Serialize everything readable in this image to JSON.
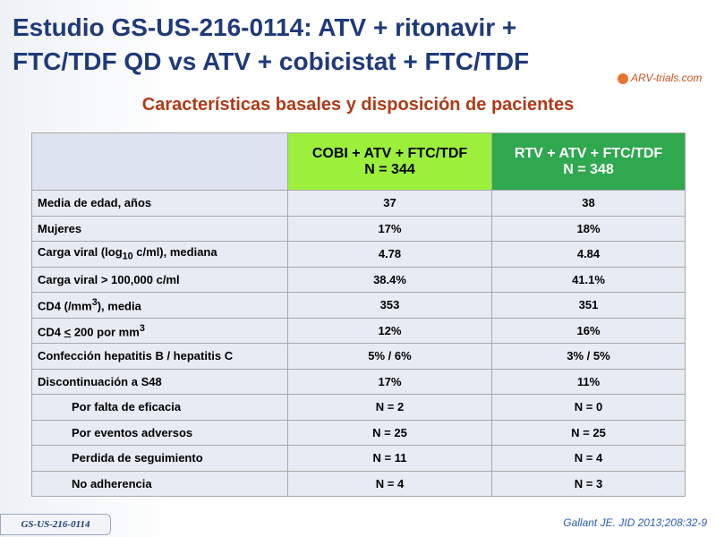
{
  "header": {
    "title_lines": [
      "Estudio GS-US-216-0114: ATV + ritonavir +",
      "FTC/TDF QD vs ATV + cobicistat + FTC/TDF"
    ],
    "logo": "ARV-trials.com",
    "subtitle": "Características basales y disposición de pacientes"
  },
  "table": {
    "columns": [
      [
        "COBI + ATV + FTC/TDF",
        "N = 344"
      ],
      [
        "RTV + ATV + FTC/TDF",
        "N = 348"
      ]
    ],
    "rows": [
      {
        "label": [
          {
            "text": "Media de edad, años"
          }
        ],
        "values": [
          "37",
          "38"
        ]
      },
      {
        "label": [
          {
            "text": "Mujeres"
          }
        ],
        "values": [
          "17%",
          "18%"
        ]
      },
      {
        "label": [
          {
            "text": "Carga viral (log"
          },
          {
            "text": "10",
            "style": "sub"
          },
          {
            "text": " c/ml), mediana"
          }
        ],
        "values": [
          "4.78",
          "4.84"
        ]
      },
      {
        "label": [
          {
            "text": "Carga viral > 100,000 c/ml"
          }
        ],
        "values": [
          "38.4%",
          "41.1%"
        ]
      },
      {
        "label": [
          {
            "text": "CD4  (/mm"
          },
          {
            "text": "3",
            "style": "sup"
          },
          {
            "text": "), media"
          }
        ],
        "values": [
          "353",
          "351"
        ]
      },
      {
        "label": [
          {
            "text": "CD4 "
          },
          {
            "text": "<",
            "style": "u"
          },
          {
            "text": " 200 por mm"
          },
          {
            "text": "3",
            "style": "sup"
          }
        ],
        "values": [
          "12%",
          "16%"
        ]
      },
      {
        "label": [
          {
            "text": "Confección hepatitis B / hepatitis C"
          }
        ],
        "values": [
          "5% / 6%",
          "3% / 5%"
        ]
      },
      {
        "label": [
          {
            "text": "Discontinuación a S48"
          }
        ],
        "values": [
          "17%",
          "11%"
        ]
      },
      {
        "label": [
          {
            "text": "Por falta de eficacia"
          }
        ],
        "values": [
          "N = 2",
          "N = 0"
        ],
        "indent": true
      },
      {
        "label": [
          {
            "text": "Por eventos adversos"
          }
        ],
        "values": [
          "N = 25",
          "N = 25"
        ],
        "indent": true
      },
      {
        "label": [
          {
            "text": "Perdida de seguimiento"
          }
        ],
        "values": [
          "N = 11",
          "N = 4"
        ],
        "indent": true
      },
      {
        "label": [
          {
            "text": "No adherencia"
          }
        ],
        "values": [
          "N = 4",
          "N = 3"
        ],
        "indent": true
      }
    ]
  },
  "footer": {
    "study": "GS-US-216-0114",
    "citation": "Gallant JE. JID 2013;208:32-9"
  }
}
